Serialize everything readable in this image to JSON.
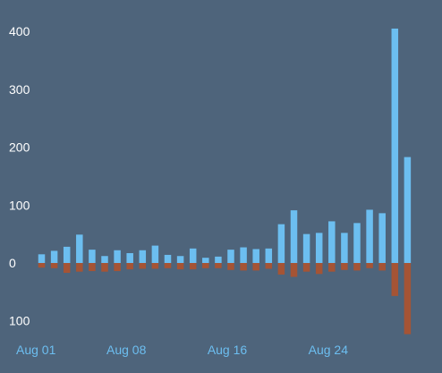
{
  "colors": {
    "background": "#4e647b",
    "positive_bar": "#6cbef0",
    "negative_bar": "#a55435",
    "y_tick_text": "#ffffff",
    "x_tick_text": "#6cbef0"
  },
  "chart_data": {
    "type": "bar",
    "title": "",
    "xlabel": "",
    "ylabel": "",
    "grid": false,
    "ylim": [
      -130,
      410
    ],
    "y_ticks": [
      {
        "value": 400,
        "label": "400"
      },
      {
        "value": 300,
        "label": "300"
      },
      {
        "value": 200,
        "label": "200"
      },
      {
        "value": 100,
        "label": "100"
      },
      {
        "value": 0,
        "label": "0"
      },
      {
        "value": -100,
        "label": "100"
      }
    ],
    "x_ticks": [
      {
        "index": 0,
        "label": "Aug 01"
      },
      {
        "index": 7,
        "label": "Aug 08"
      },
      {
        "index": 15,
        "label": "Aug 16"
      },
      {
        "index": 23,
        "label": "Aug 24"
      }
    ],
    "categories": [
      "Aug 01",
      "Aug 02",
      "Aug 03",
      "Aug 04",
      "Aug 05",
      "Aug 06",
      "Aug 07",
      "Aug 08",
      "Aug 09",
      "Aug 10",
      "Aug 11",
      "Aug 12",
      "Aug 13",
      "Aug 14",
      "Aug 15",
      "Aug 16",
      "Aug 17",
      "Aug 18",
      "Aug 19",
      "Aug 20",
      "Aug 21",
      "Aug 22",
      "Aug 23",
      "Aug 24",
      "Aug 25",
      "Aug 26",
      "Aug 27",
      "Aug 28",
      "Aug 29",
      "Aug 30",
      "Aug 31"
    ],
    "series": [
      {
        "values": [
          15,
          21,
          28,
          49,
          23,
          12,
          22,
          17,
          22,
          30,
          14,
          12,
          25,
          9,
          11,
          23,
          27,
          24,
          25,
          67,
          91,
          50,
          52,
          72,
          52,
          69,
          92,
          86,
          405,
          183,
          0
        ]
      },
      {
        "values": [
          -8,
          -9,
          -17,
          -15,
          -14,
          -15,
          -14,
          -11,
          -10,
          -10,
          -9,
          -11,
          -11,
          -9,
          -9,
          -12,
          -13,
          -13,
          -10,
          -20,
          -24,
          -15,
          -19,
          -15,
          -12,
          -13,
          -9,
          -13,
          -57,
          -123,
          0
        ]
      }
    ]
  }
}
